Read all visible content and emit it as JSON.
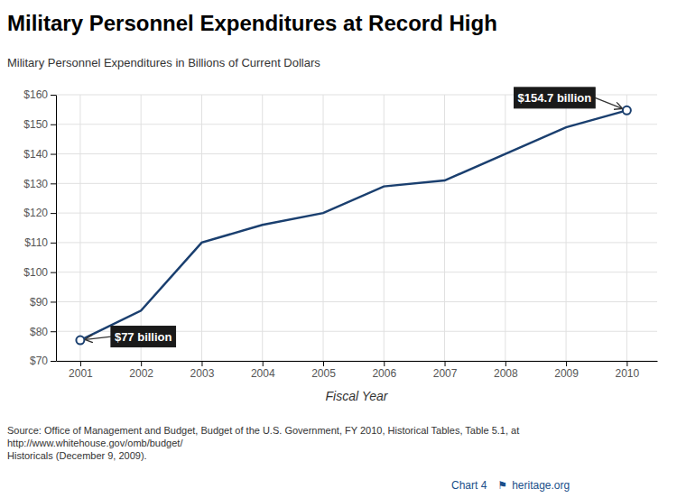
{
  "chart_data": {
    "type": "line",
    "title": "Military Personnel Expenditures at Record High",
    "subtitle": "Military Personnel Expenditures in Billions of Current Dollars",
    "x_label": "Fiscal Year",
    "x": [
      2001,
      2002,
      2003,
      2004,
      2005,
      2006,
      2007,
      2008,
      2009,
      2010
    ],
    "values": [
      77,
      87,
      110,
      116,
      120,
      129,
      131,
      140,
      149,
      154.7
    ],
    "color": "#1a3f6f",
    "xlim": [
      2000.6,
      2010.5
    ],
    "xticks": [
      2001,
      2002,
      2003,
      2004,
      2005,
      2006,
      2007,
      2008,
      2009,
      2010
    ],
    "ylim": [
      70,
      160
    ],
    "yticks": [
      {
        "value": 70,
        "label": "$70"
      },
      {
        "value": 80,
        "label": "$80"
      },
      {
        "value": 90,
        "label": "$90"
      },
      {
        "value": 100,
        "label": "$100"
      },
      {
        "value": 110,
        "label": "$110"
      },
      {
        "value": 120,
        "label": "$120"
      },
      {
        "value": 130,
        "label": "$130"
      },
      {
        "value": 140,
        "label": "$140"
      },
      {
        "value": 150,
        "label": "$150"
      },
      {
        "value": 160,
        "label": "$160"
      }
    ],
    "grid": true,
    "annotations": [
      {
        "text": "$77 billion",
        "x": 2001,
        "y": 77
      },
      {
        "text": "$154.7 billion",
        "x": 2010,
        "y": 154.7
      }
    ],
    "source": [
      "Source: Office of Management and Budget, Budget of the U.S. Government, FY 2010, Historical Tables, Table 5.1, at http://www.whitehouse.gov/omb/budget/",
      "Historicals (December 9, 2009)."
    ],
    "chart_label": "Chart 4",
    "icon": "⚑",
    "heritage_text": "heritage.org"
  }
}
